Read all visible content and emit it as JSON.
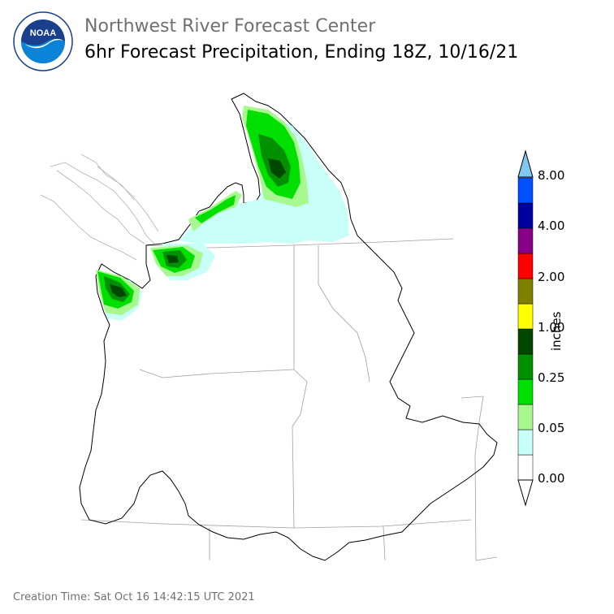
{
  "header": {
    "agency": "Northwest River Forecast Center",
    "product": "6hr Forecast Precipitation, Ending 18Z, 10/16/21"
  },
  "logo": {
    "text": "NOAA",
    "ring_text": "NATIONAL OCEANIC AND ATMOSPHERIC ADMINISTRATION · U.S. DEPARTMENT OF COMMERCE"
  },
  "legend": {
    "units": "inches",
    "tick_labels": [
      "8.00",
      "4.00",
      "2.00",
      "1.00",
      "0.25",
      "0.05",
      "0.00"
    ],
    "bins": [
      {
        "color": "#ffffff"
      },
      {
        "color": "#c8fff8"
      },
      {
        "color": "#a8f890"
      },
      {
        "color": "#00e000"
      },
      {
        "color": "#009000"
      },
      {
        "color": "#004800"
      },
      {
        "color": "#ffff00"
      },
      {
        "color": "#808000"
      },
      {
        "color": "#ff0000"
      },
      {
        "color": "#880088"
      },
      {
        "color": "#0000a0"
      },
      {
        "color": "#0050ff"
      },
      {
        "color": "#80c8f0"
      }
    ]
  },
  "footer": {
    "creation_time": "Creation Time: Sat Oct 16 14:42:15 UTC 2021"
  }
}
